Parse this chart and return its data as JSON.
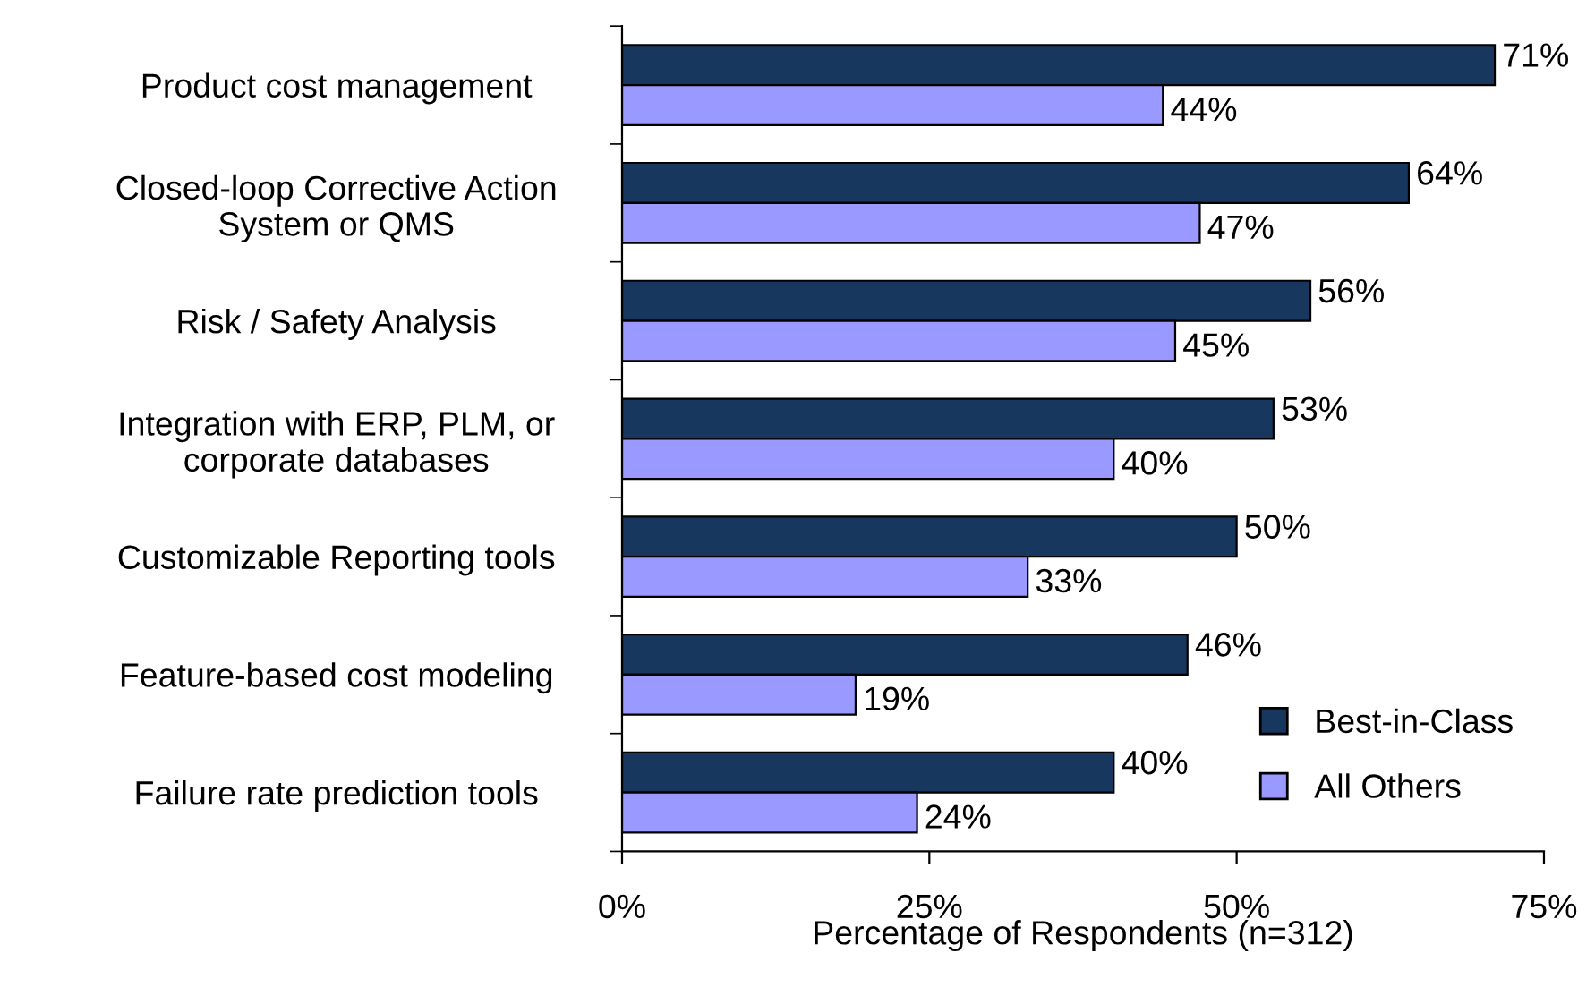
{
  "chart_data": {
    "type": "bar",
    "orientation": "horizontal",
    "xlabel": "Percentage of Respondents (n=312)",
    "categories": [
      "Product cost management",
      "Closed-loop Corrective Action\nSystem or QMS",
      "Risk / Safety Analysis",
      "Integration with ERP, PLM, or\ncorporate databases",
      "Customizable Reporting tools",
      "Feature-based cost modeling",
      "Failure rate prediction tools"
    ],
    "series": [
      {
        "name": "Best-in-Class",
        "color": "#17375e",
        "values": [
          71,
          64,
          56,
          53,
          50,
          46,
          40
        ],
        "value_labels": [
          "71%",
          "64%",
          "56%",
          "53%",
          "50%",
          "46%",
          "40%"
        ]
      },
      {
        "name": "All Others",
        "color": "#9999ff",
        "values": [
          44,
          47,
          45,
          40,
          33,
          19,
          24
        ],
        "value_labels": [
          "44%",
          "47%",
          "45%",
          "40%",
          "33%",
          "19%",
          "24%"
        ]
      }
    ],
    "xlim": [
      0,
      75
    ],
    "xticks": [
      {
        "value": 0,
        "label": "0%"
      },
      {
        "value": 25,
        "label": "25%"
      },
      {
        "value": 50,
        "label": "50%"
      },
      {
        "value": 75,
        "label": "75%"
      }
    ],
    "grid": false,
    "legend": "bottom right"
  }
}
